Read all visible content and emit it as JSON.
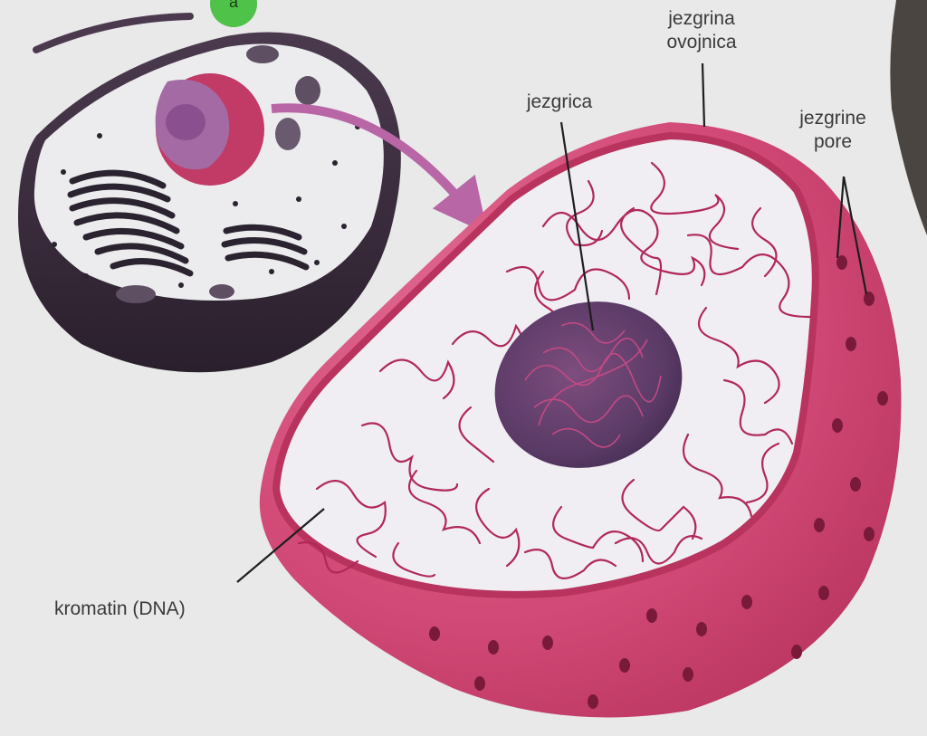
{
  "labels": {
    "nuclear_envelope": [
      "jezgrina",
      "ovojnica"
    ],
    "nuclear_pores": [
      "jezgrine",
      "pore"
    ],
    "nucleolus": "jezgrica",
    "chromatin": "kromatin (DNA)",
    "marker_letter": "a"
  },
  "colors": {
    "background": "#e9e9ea",
    "nucleus_shell": "#d24a77",
    "nucleus_rim": "#b8335e",
    "interior": "#f1eef3",
    "chromatin": "#b0285a",
    "nucleolus": "#5a3a66",
    "cell_dark": "#3a2a3c",
    "cell_interior": "#ecebee",
    "marker": "#4fc24a"
  },
  "icons": [
    "pointer-arrow-icon"
  ]
}
